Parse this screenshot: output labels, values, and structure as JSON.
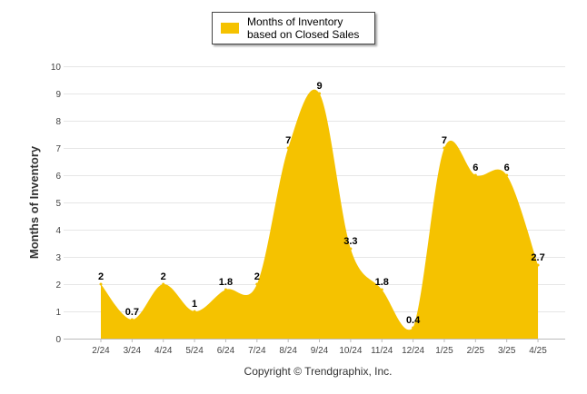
{
  "chart_data": {
    "type": "area",
    "legend": {
      "label": "Months of Inventory based on Closed Sales",
      "position": "top-center"
    },
    "ylabel": "Months of Inventory",
    "ylim": [
      0,
      10
    ],
    "yticks": [
      "0",
      "1",
      "2",
      "3",
      "4",
      "5",
      "6",
      "7",
      "8",
      "9",
      "10"
    ],
    "categories": [
      "2/24",
      "3/24",
      "4/24",
      "5/24",
      "6/24",
      "7/24",
      "8/24",
      "9/24",
      "10/24",
      "11/24",
      "12/24",
      "1/25",
      "2/25",
      "3/25",
      "4/25"
    ],
    "values": [
      2,
      0.7,
      2,
      1,
      1.8,
      2,
      7,
      9,
      3.3,
      1.8,
      0.4,
      7,
      6,
      6,
      2.7
    ],
    "data_labels": [
      "2",
      "0.7",
      "2",
      "1",
      "1.8",
      "2",
      "7",
      "9",
      "3.3",
      "1.8",
      "0.4",
      "7",
      "6",
      "6",
      "2.7"
    ],
    "grid": true,
    "color": "#F5C200"
  },
  "footer": {
    "copyright": "Copyright © Trendgraphix, Inc."
  }
}
